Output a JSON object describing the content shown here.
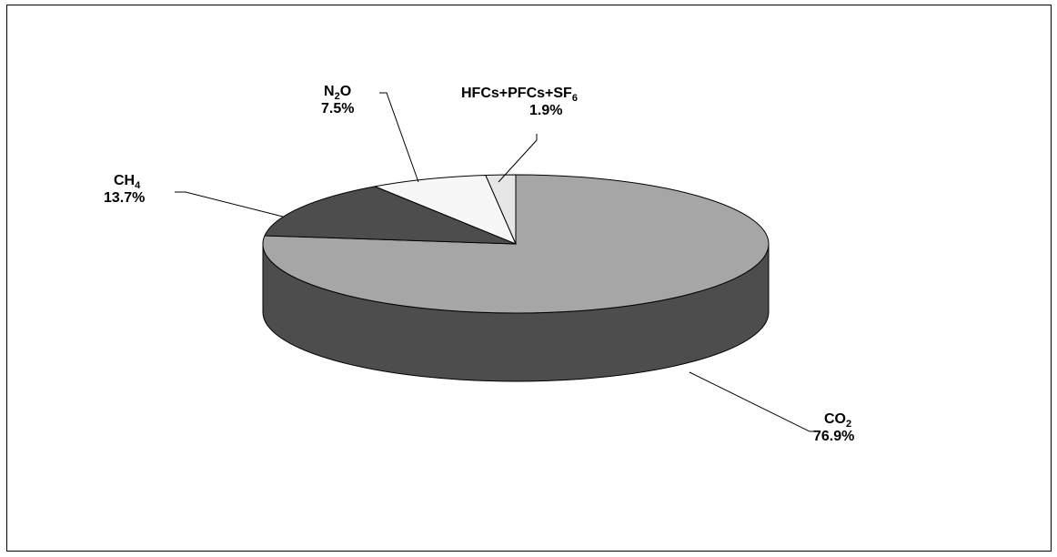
{
  "chart_data": {
    "type": "pie",
    "three_d": true,
    "categories": [
      "CO2",
      "CH4",
      "N2O",
      "HFCs+PFCs+SF6"
    ],
    "values": [
      76.9,
      13.7,
      7.5,
      1.9
    ],
    "labels": [
      {
        "base": "CO",
        "sub": "2",
        "tail": "",
        "percent": "76.9%"
      },
      {
        "base": "CH",
        "sub": "4",
        "tail": "",
        "percent": "13.7%"
      },
      {
        "base": "N",
        "sub": "2",
        "tail": "O",
        "percent": "7.5%"
      },
      {
        "base": "HFCs+PFCs+SF",
        "sub": "6",
        "tail": "",
        "percent": "1.9%"
      }
    ],
    "colors": [
      "#a6a6a6",
      "#4d4d4d",
      "#f7f7f7",
      "#e6e6e6"
    ],
    "side_color": "#4d4d4d",
    "legend": "none",
    "title": ""
  }
}
